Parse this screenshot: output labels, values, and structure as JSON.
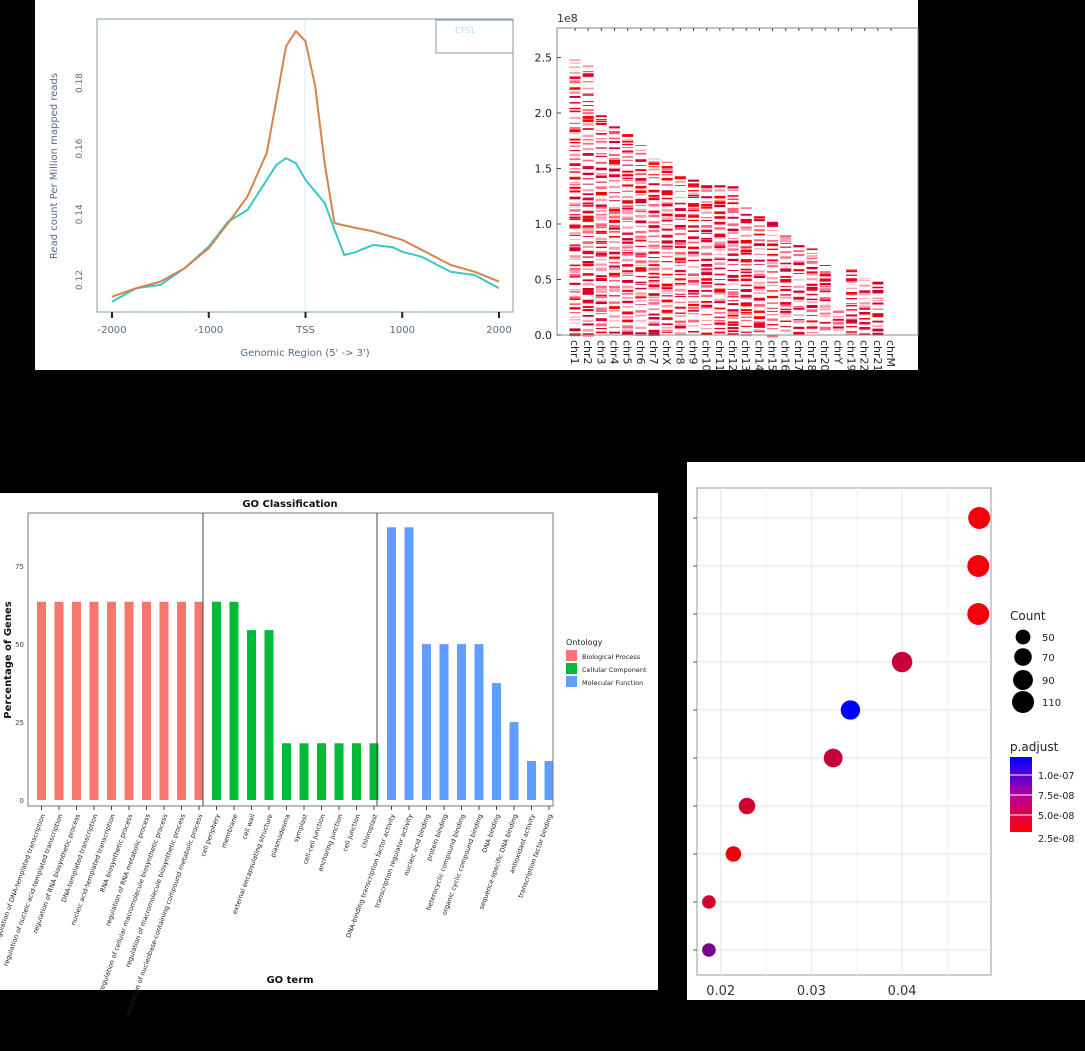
{
  "chart_data": [
    {
      "type": "line",
      "xlabel": "Genomic Region (5' -> 3')",
      "ylabel": "Read count Per Million mapped reads",
      "x_ticks": [
        -2000,
        -1000,
        "TSS",
        1000,
        2000
      ],
      "x_tick_labels": [
        "-2000",
        "-1000",
        "TSS",
        "1000",
        "2000"
      ],
      "y_ticks": [
        0.12,
        0.14,
        0.16,
        0.18
      ],
      "y_tick_labels": [
        "0.12",
        "0.14",
        "0.16",
        "0.18"
      ],
      "xlim": [
        -2000,
        2000
      ],
      "ylim": [
        0.112,
        0.198
      ],
      "legend_position": "top-right",
      "series": [
        {
          "name": "ETS1",
          "color": "#3cc6c6",
          "x": [
            -2000,
            -1750,
            -1500,
            -1250,
            -1000,
            -800,
            -600,
            -400,
            -300,
            -200,
            -100,
            0,
            200,
            300,
            400,
            500,
            700,
            900,
            1000,
            1200,
            1500,
            1750,
            2000
          ],
          "y": [
            0.1134,
            0.1175,
            0.1185,
            0.1236,
            0.1302,
            0.1378,
            0.1413,
            0.1505,
            0.1551,
            0.1571,
            0.1556,
            0.1505,
            0.1434,
            0.1353,
            0.1276,
            0.1283,
            0.1307,
            0.13,
            0.1286,
            0.1271,
            0.1225,
            0.1215,
            0.1175
          ]
        },
        {
          "name": "",
          "color": "#d9824a",
          "x": [
            -2000,
            -1750,
            -1500,
            -1250,
            -1000,
            -800,
            -600,
            -400,
            -300,
            -200,
            -100,
            0,
            100,
            200,
            300,
            500,
            700,
            1000,
            1200,
            1500,
            1750,
            2000
          ],
          "y": [
            0.1149,
            0.1175,
            0.1195,
            0.1236,
            0.1297,
            0.1373,
            0.1454,
            0.1587,
            0.175,
            0.1912,
            0.1958,
            0.1927,
            0.179,
            0.155,
            0.1373,
            0.136,
            0.1348,
            0.1322,
            0.1292,
            0.1246,
            0.1225,
            0.1195
          ]
        }
      ]
    },
    {
      "type": "heatmap",
      "y_multiplier_label": "1e8",
      "y_ticks": [
        0.0,
        0.5,
        1.0,
        1.5,
        2.0,
        2.5
      ],
      "y_tick_labels": [
        "0.0",
        "0.5",
        "1.0",
        "1.5",
        "2.0",
        "2.5"
      ],
      "ylim": [
        0,
        2.75
      ],
      "color": "#ff0000",
      "categories": [
        "chr1",
        "chr2",
        "chr3",
        "chr4",
        "chr5",
        "chr6",
        "chr7",
        "chrX",
        "chr8",
        "chr9",
        "chr10",
        "chr11",
        "chr12",
        "chr13",
        "chr14",
        "chr15",
        "chr16",
        "chr17",
        "chr18",
        "chr20",
        "chrY",
        "chr19",
        "chr22",
        "chr21",
        "chrM"
      ],
      "max_peak_position_1e8": [
        2.48,
        2.43,
        1.98,
        1.88,
        1.81,
        1.71,
        1.59,
        1.56,
        1.43,
        1.4,
        1.35,
        1.35,
        1.34,
        1.15,
        1.07,
        1.02,
        0.9,
        0.81,
        0.78,
        0.63,
        0.22,
        0.59,
        0.51,
        0.48,
        0
      ]
    },
    {
      "type": "bar",
      "title": "GO Classification",
      "xlabel": "GO term",
      "ylabel": "Percentage of Genes",
      "ylim": [
        0,
        92
      ],
      "y_ticks": [
        0,
        25,
        50,
        75
      ],
      "y_tick_labels": [
        "0",
        "25",
        "50",
        "75"
      ],
      "legend_title": "Ontology",
      "legend_position": "right",
      "groups": [
        {
          "name": "Biological Process",
          "color": "#f8766d",
          "categories": [
            "regulation of DNA-templated transcription",
            "regulation of nucleic acid-templated transcription",
            "regulation of RNA biosynthetic process",
            "DNA-templated transcription",
            "nucleic acid-templated transcription",
            "RNA biosynthetic process",
            "regulation of RNA metabolic process",
            "regulation of cellular macromolecule biosynthetic process",
            "regulation of macromolecule biosynthetic process",
            "regulation of nucleobase-containing compound metabolic process"
          ],
          "values": [
            63.6,
            63.6,
            63.6,
            63.6,
            63.6,
            63.6,
            63.6,
            63.6,
            63.6,
            63.6
          ]
        },
        {
          "name": "Cellular Component",
          "color": "#00ba38",
          "categories": [
            "cell periphery",
            "membrane",
            "cell wall",
            "external encapsulating structure",
            "plasmodesma",
            "symplast",
            "cell-cell junction",
            "anchoring junction",
            "cell junction",
            "chloroplast"
          ],
          "values": [
            63.6,
            63.6,
            54.5,
            54.5,
            18.2,
            18.2,
            18.2,
            18.2,
            18.2,
            18.2
          ]
        },
        {
          "name": "Molecular Function",
          "color": "#619cff",
          "categories": [
            "DNA-binding transcription factor activity",
            "transcription regulator activity",
            "nucleic acid binding",
            "protein binding",
            "heterocyclic compound binding",
            "organic cyclic compound binding",
            "DNA binding",
            "sequence-specific DNA binding",
            "antioxidant activity",
            "transcription factor binding"
          ],
          "values": [
            87.5,
            87.5,
            50,
            50,
            50,
            50,
            37.5,
            25,
            12.5,
            12.5
          ]
        }
      ]
    },
    {
      "type": "scatter",
      "xlim": [
        0.0175,
        0.0495
      ],
      "x_ticks": [
        0.02,
        0.03,
        0.04
      ],
      "x_tick_labels": [
        "0.02",
        "0.03",
        "0.04"
      ],
      "size_legend_title": "Count",
      "size_legend": [
        50,
        70,
        90,
        110
      ],
      "size_legend_labels": [
        "50",
        "70",
        "90",
        "110"
      ],
      "color_legend_title": "p.adjust",
      "color_legend_ticks": [
        "1.0e-07",
        "7.5e-08",
        "5.0e-08",
        "2.5e-08"
      ],
      "color_scale": [
        "#ff0000",
        "#0000ff"
      ],
      "points": [
        {
          "x": 0.0485,
          "count": 110,
          "p_adjust": 5e-09
        },
        {
          "x": 0.0484,
          "count": 110,
          "p_adjust": 5e-09
        },
        {
          "x": 0.0484,
          "count": 110,
          "p_adjust": 5e-09
        },
        {
          "x": 0.04,
          "count": 95,
          "p_adjust": 2.5e-08
        },
        {
          "x": 0.0343,
          "count": 85,
          "p_adjust": 1.1e-07
        },
        {
          "x": 0.0324,
          "count": 80,
          "p_adjust": 2.5e-08
        },
        {
          "x": 0.0229,
          "count": 62,
          "p_adjust": 2e-08
        },
        {
          "x": 0.0214,
          "count": 55,
          "p_adjust": 5e-09
        },
        {
          "x": 0.0187,
          "count": 42,
          "p_adjust": 2e-08
        },
        {
          "x": 0.0187,
          "count": 42,
          "p_adjust": 6e-08
        }
      ]
    }
  ]
}
